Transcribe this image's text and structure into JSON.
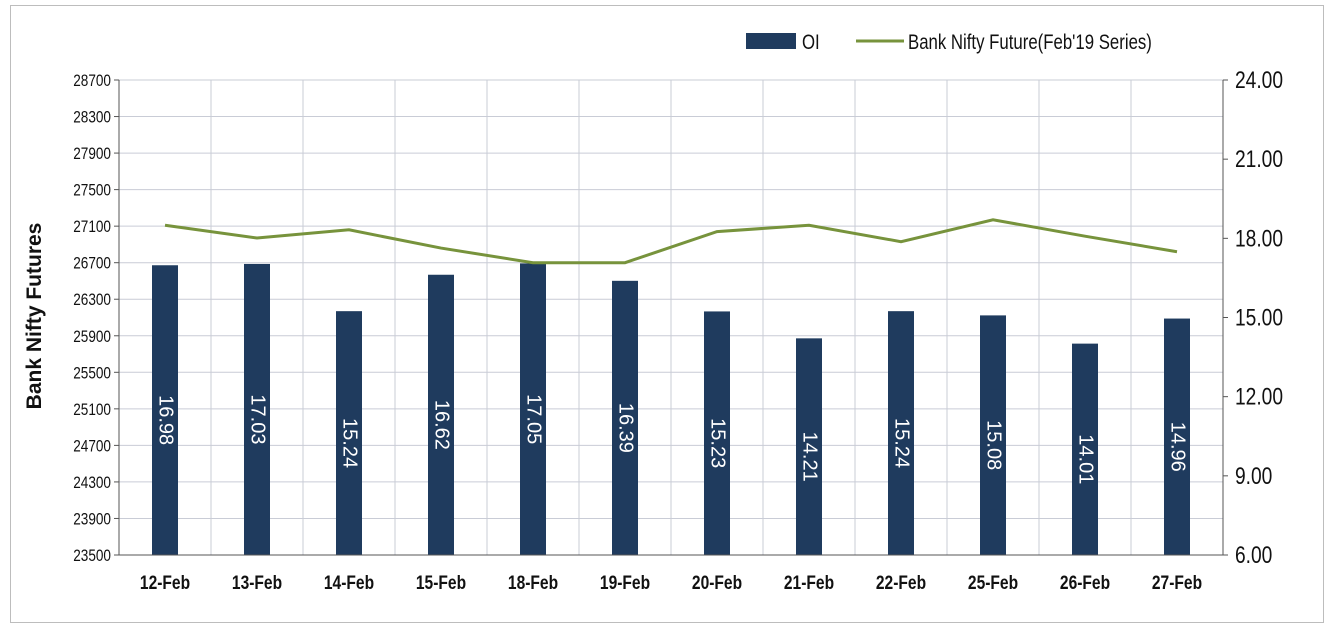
{
  "chart_data": {
    "type": "bar+line",
    "categories": [
      "12-Feb",
      "13-Feb",
      "14-Feb",
      "15-Feb",
      "18-Feb",
      "19-Feb",
      "20-Feb",
      "21-Feb",
      "22-Feb",
      "25-Feb",
      "26-Feb",
      "27-Feb"
    ],
    "series": [
      {
        "name": "OI",
        "kind": "bar",
        "axis": "right",
        "values": [
          16.98,
          17.03,
          15.24,
          16.62,
          17.05,
          16.39,
          15.23,
          14.21,
          15.24,
          15.08,
          14.01,
          14.96
        ],
        "color": "#1f3b5e"
      },
      {
        "name": "Bank Nifty Future(Feb'19 Series)",
        "kind": "line",
        "axis": "left",
        "values": [
          27110,
          26970,
          27060,
          26860,
          26700,
          26700,
          27040,
          27110,
          26930,
          27170,
          26990,
          26820
        ],
        "color": "#77933c"
      }
    ],
    "ylabel": "Bank Nifty Futures",
    "y_left": {
      "min": 23500,
      "max": 28700,
      "ticks": [
        "23500",
        "23900",
        "24300",
        "24700",
        "25100",
        "25500",
        "25900",
        "26300",
        "26700",
        "27100",
        "27500",
        "27900",
        "28300",
        "28700"
      ]
    },
    "y_right": {
      "min": 6.0,
      "max": 24.0,
      "ticks": [
        "6.00",
        "9.00",
        "12.00",
        "15.00",
        "18.00",
        "21.00",
        "24.00"
      ]
    },
    "grid": true,
    "legend_position": "top-right"
  }
}
